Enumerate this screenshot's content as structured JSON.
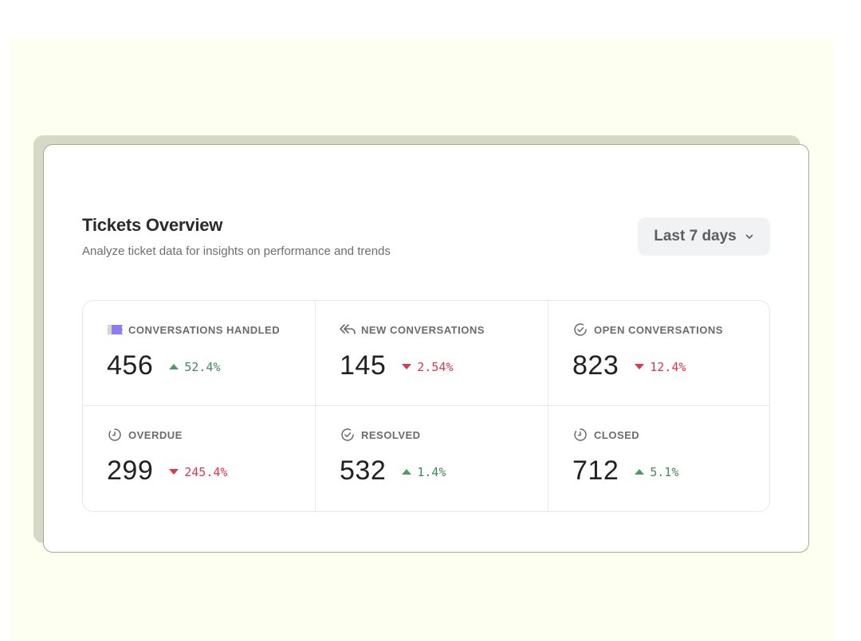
{
  "header": {
    "title": "Tickets Overview",
    "subtitle": "Analyze ticket data for insights on performance and trends"
  },
  "range_select": {
    "selected": "Last 7 days",
    "icon": "chevron-down-icon"
  },
  "colors": {
    "up": "#3f8a5a",
    "down": "#e0364f",
    "accent_ticket": "#8b7cf6"
  },
  "metrics": [
    {
      "label": "CONVERSATIONS HANDLED",
      "value": "456",
      "delta": "52.4%",
      "direction": "up",
      "icon": "ticket-icon"
    },
    {
      "label": "NEW CONVERSATIONS",
      "value": "145",
      "delta": "2.54%",
      "direction": "down",
      "icon": "reply-all-icon"
    },
    {
      "label": "OPEN CONVERSATIONS",
      "value": "823",
      "delta": "12.4%",
      "direction": "down",
      "icon": "check-circle-icon"
    },
    {
      "label": "OVERDUE",
      "value": "299",
      "delta": "245.4%",
      "direction": "down",
      "icon": "clock-icon"
    },
    {
      "label": "RESOLVED",
      "value": "532",
      "delta": "1.4%",
      "direction": "up",
      "icon": "check-circle-icon"
    },
    {
      "label": "CLOSED",
      "value": "712",
      "delta": "5.1%",
      "direction": "up",
      "icon": "clock-icon"
    }
  ]
}
